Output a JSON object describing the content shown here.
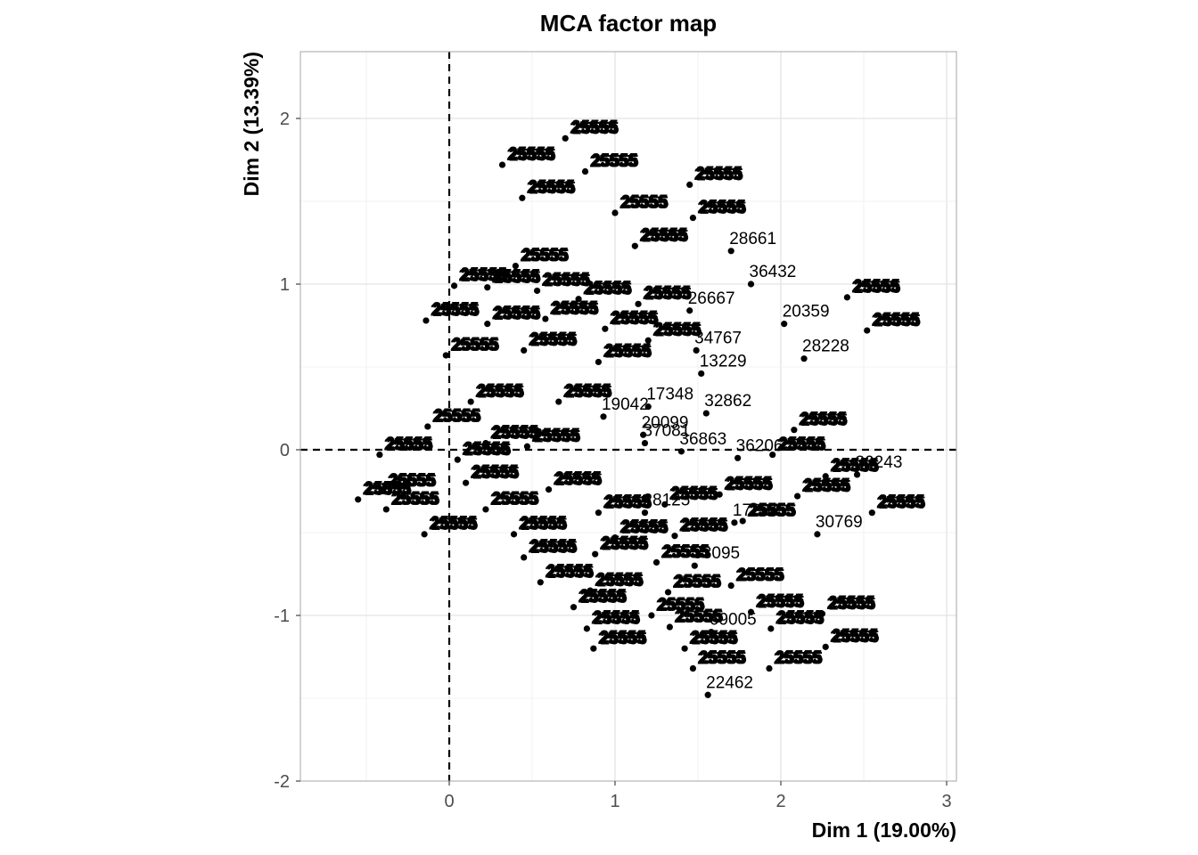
{
  "chart_data": {
    "type": "scatter",
    "title": "MCA factor map",
    "xlabel": "Dim 1 (19.00%)",
    "ylabel": "Dim 2 (13.39%)",
    "xlim": [
      -0.9,
      3.05
    ],
    "ylim": [
      -2.0,
      2.4
    ],
    "x_ticks": [
      0,
      1,
      2,
      3
    ],
    "y_ticks": [
      -2,
      -1,
      0,
      1,
      2
    ],
    "reference_lines": {
      "x": 0,
      "y": 0,
      "style": "dashed"
    },
    "grid": true,
    "labeled_points": [
      {
        "label": "28661",
        "x": 1.7,
        "y": 1.2
      },
      {
        "label": "26667",
        "x": 1.45,
        "y": 0.84
      },
      {
        "label": "36432",
        "x": 1.82,
        "y": 1.0
      },
      {
        "label": "20359",
        "x": 2.02,
        "y": 0.76
      },
      {
        "label": "28228",
        "x": 2.14,
        "y": 0.55
      },
      {
        "label": "34767",
        "x": 1.49,
        "y": 0.6
      },
      {
        "label": "13229",
        "x": 1.52,
        "y": 0.46
      },
      {
        "label": "32862",
        "x": 1.55,
        "y": 0.22
      },
      {
        "label": "17348",
        "x": 1.2,
        "y": 0.26
      },
      {
        "label": "19042",
        "x": 0.93,
        "y": 0.2
      },
      {
        "label": "20099",
        "x": 1.17,
        "y": 0.09
      },
      {
        "label": "37081",
        "x": 1.18,
        "y": 0.04
      },
      {
        "label": "36863",
        "x": 1.4,
        "y": -0.01
      },
      {
        "label": "36206",
        "x": 1.74,
        "y": -0.05
      },
      {
        "label": "30243",
        "x": 2.46,
        "y": -0.15
      },
      {
        "label": "28125",
        "x": 1.18,
        "y": -0.38
      },
      {
        "label": "17284",
        "x": 1.72,
        "y": -0.44
      },
      {
        "label": "30769",
        "x": 2.22,
        "y": -0.51
      },
      {
        "label": "33095",
        "x": 1.48,
        "y": -0.7
      },
      {
        "label": "69005",
        "x": 1.58,
        "y": -1.1
      },
      {
        "label": "22462",
        "x": 1.56,
        "y": -1.48
      }
    ],
    "clusters": [
      {
        "label": "25555",
        "x": 0.7,
        "y": 1.88
      },
      {
        "label": "25555",
        "x": 0.32,
        "y": 1.72
      },
      {
        "label": "25555",
        "x": 0.82,
        "y": 1.68
      },
      {
        "label": "25555",
        "x": 0.44,
        "y": 1.52
      },
      {
        "label": "25555",
        "x": 1.45,
        "y": 1.6
      },
      {
        "label": "25555",
        "x": 1.0,
        "y": 1.43
      },
      {
        "label": "25555",
        "x": 1.47,
        "y": 1.4
      },
      {
        "label": "25555",
        "x": 1.12,
        "y": 1.23
      },
      {
        "label": "25555",
        "x": 0.4,
        "y": 1.11
      },
      {
        "label": "25555",
        "x": 0.03,
        "y": 0.99
      },
      {
        "label": "25555",
        "x": 0.23,
        "y": 0.98
      },
      {
        "label": "25555",
        "x": 0.53,
        "y": 0.96
      },
      {
        "label": "25555",
        "x": -0.14,
        "y": 0.78
      },
      {
        "label": "25555",
        "x": 0.78,
        "y": 0.91
      },
      {
        "label": "25555",
        "x": 1.14,
        "y": 0.88
      },
      {
        "label": "25555",
        "x": 0.23,
        "y": 0.76
      },
      {
        "label": "25555",
        "x": 0.58,
        "y": 0.79
      },
      {
        "label": "25555",
        "x": 0.94,
        "y": 0.73
      },
      {
        "label": "25555",
        "x": -0.02,
        "y": 0.57
      },
      {
        "label": "25555",
        "x": 1.2,
        "y": 0.66
      },
      {
        "label": "25555",
        "x": 0.45,
        "y": 0.6
      },
      {
        "label": "25555",
        "x": 0.9,
        "y": 0.53
      },
      {
        "label": "25555",
        "x": 0.13,
        "y": 0.29
      },
      {
        "label": "25555",
        "x": 0.66,
        "y": 0.29
      },
      {
        "label": "25555",
        "x": 2.4,
        "y": 0.92
      },
      {
        "label": "25555",
        "x": 2.52,
        "y": 0.72
      },
      {
        "label": "25555",
        "x": -0.13,
        "y": 0.14
      },
      {
        "label": "25555",
        "x": 2.08,
        "y": 0.12
      },
      {
        "label": "25555",
        "x": 0.22,
        "y": 0.04
      },
      {
        "label": "25555",
        "x": 0.47,
        "y": 0.02
      },
      {
        "label": "25555",
        "x": -0.42,
        "y": -0.03
      },
      {
        "label": "25555",
        "x": 0.05,
        "y": -0.06
      },
      {
        "label": "25555",
        "x": 1.95,
        "y": -0.03
      },
      {
        "label": "25555",
        "x": 2.27,
        "y": -0.16
      },
      {
        "label": "25555",
        "x": 0.1,
        "y": -0.2
      },
      {
        "label": "25555",
        "x": 0.6,
        "y": -0.24
      },
      {
        "label": "25555",
        "x": 1.63,
        "y": -0.27
      },
      {
        "label": "25555",
        "x": 2.1,
        "y": -0.28
      },
      {
        "label": "25555",
        "x": -0.4,
        "y": -0.25
      },
      {
        "label": "25555",
        "x": -0.55,
        "y": -0.3
      },
      {
        "label": "25555",
        "x": -0.38,
        "y": -0.36
      },
      {
        "label": "25555",
        "x": 0.22,
        "y": -0.36
      },
      {
        "label": "25555",
        "x": 0.9,
        "y": -0.38
      },
      {
        "label": "25555",
        "x": 1.3,
        "y": -0.33
      },
      {
        "label": "25555",
        "x": 2.55,
        "y": -0.38
      },
      {
        "label": "25555",
        "x": -0.15,
        "y": -0.51
      },
      {
        "label": "25555",
        "x": 0.39,
        "y": -0.51
      },
      {
        "label": "25555",
        "x": 1.0,
        "y": -0.53
      },
      {
        "label": "25555",
        "x": 1.36,
        "y": -0.52
      },
      {
        "label": "25555",
        "x": 1.77,
        "y": -0.43
      },
      {
        "label": "25555",
        "x": 0.45,
        "y": -0.65
      },
      {
        "label": "25555",
        "x": 0.88,
        "y": -0.63
      },
      {
        "label": "25555",
        "x": 1.25,
        "y": -0.68
      },
      {
        "label": "25555",
        "x": 0.55,
        "y": -0.8
      },
      {
        "label": "25555",
        "x": 0.85,
        "y": -0.85
      },
      {
        "label": "25555",
        "x": 1.32,
        "y": -0.86
      },
      {
        "label": "25555",
        "x": 1.7,
        "y": -0.82
      },
      {
        "label": "25555",
        "x": 0.75,
        "y": -0.95
      },
      {
        "label": "25555",
        "x": 1.22,
        "y": -1.0
      },
      {
        "label": "25555",
        "x": 1.82,
        "y": -0.98
      },
      {
        "label": "25555",
        "x": 2.25,
        "y": -0.99
      },
      {
        "label": "25555",
        "x": 0.83,
        "y": -1.08
      },
      {
        "label": "25555",
        "x": 1.33,
        "y": -1.07
      },
      {
        "label": "25555",
        "x": 1.94,
        "y": -1.08
      },
      {
        "label": "25555",
        "x": 0.87,
        "y": -1.2
      },
      {
        "label": "25555",
        "x": 1.42,
        "y": -1.2
      },
      {
        "label": "25555",
        "x": 2.27,
        "y": -1.19
      },
      {
        "label": "25555",
        "x": 1.47,
        "y": -1.32
      },
      {
        "label": "25555",
        "x": 1.93,
        "y": -1.32
      }
    ]
  }
}
